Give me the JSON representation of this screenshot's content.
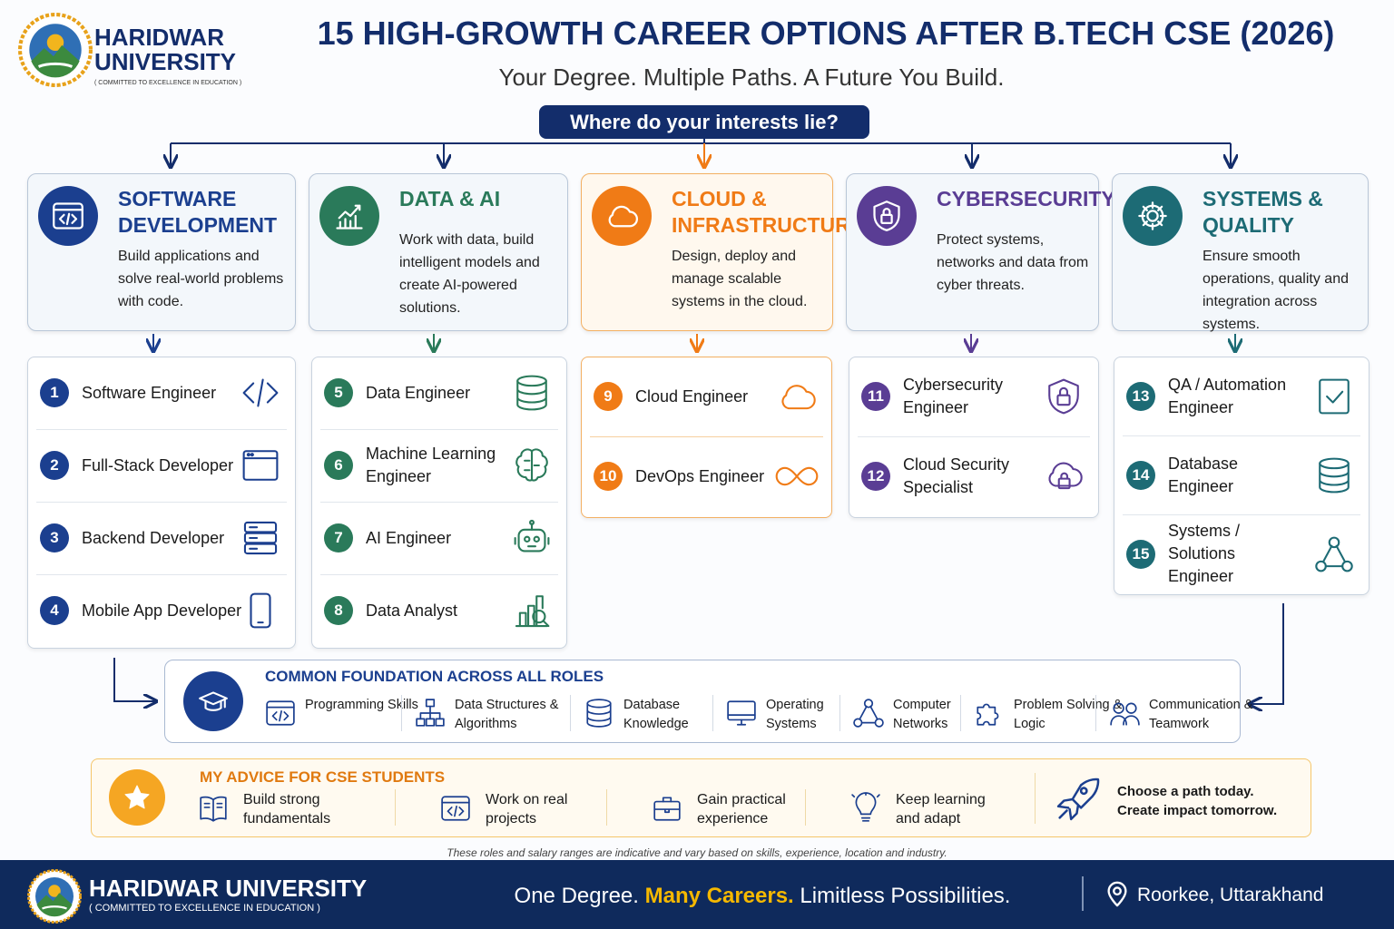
{
  "header": {
    "logo_name": "HARIDWAR UNIVERSITY",
    "logo_tagline": "( COMMITTED TO EXCELLENCE IN EDUCATION )",
    "title": "15 HIGH-GROWTH CAREER OPTIONS AFTER B.TECH CSE (2026)",
    "subtitle": "Your Degree. Multiple Paths. A Future You Build."
  },
  "question": "Where do your interests lie?",
  "categories": [
    {
      "title": "SOFTWARE DEVELOPMENT",
      "description": "Build applications and solve real-world problems with code.",
      "color": "#1b3f8f",
      "roles": [
        {
          "number": 1,
          "title": "Software Engineer"
        },
        {
          "number": 2,
          "title": "Full-Stack Developer"
        },
        {
          "number": 3,
          "title": "Backend Developer"
        },
        {
          "number": 4,
          "title": "Mobile App Developer"
        }
      ]
    },
    {
      "title": "DATA & AI",
      "description": "Work with data, build intelligent models and create AI-powered solutions.",
      "color": "#2a7a5a",
      "roles": [
        {
          "number": 5,
          "title": "Data Engineer"
        },
        {
          "number": 6,
          "title": "Machine Learning Engineer"
        },
        {
          "number": 7,
          "title": "AI Engineer"
        },
        {
          "number": 8,
          "title": "Data Analyst"
        }
      ]
    },
    {
      "title": "CLOUD & INFRASTRUCTURE",
      "description": "Design, deploy and manage scalable systems in the cloud.",
      "color": "#f07b16",
      "roles": [
        {
          "number": 9,
          "title": "Cloud Engineer"
        },
        {
          "number": 10,
          "title": "DevOps Engineer"
        }
      ]
    },
    {
      "title": "CYBERSECURITY",
      "description": "Protect systems, networks and data from cyber threats.",
      "color": "#5a3d94",
      "roles": [
        {
          "number": 11,
          "title": "Cybersecurity Engineer"
        },
        {
          "number": 12,
          "title": "Cloud Security Specialist"
        }
      ]
    },
    {
      "title": "SYSTEMS & QUALITY",
      "description": "Ensure smooth operations, quality and integration across systems.",
      "color": "#1d6b75",
      "roles": [
        {
          "number": 13,
          "title": "QA / Automation Engineer"
        },
        {
          "number": 14,
          "title": "Database Engineer"
        },
        {
          "number": 15,
          "title": "Systems / Solutions Engineer"
        }
      ]
    }
  ],
  "foundation": {
    "title": "COMMON FOUNDATION ACROSS ALL ROLES",
    "items": [
      "Programming Skills",
      "Data Structures & Algorithms",
      "Database Knowledge",
      "Operating Systems",
      "Computer Networks",
      "Problem Solving & Logic",
      "Communication & Teamwork"
    ]
  },
  "advice": {
    "title": "MY ADVICE FOR CSE STUDENTS",
    "items": [
      "Build strong fundamentals",
      "Work on real projects",
      "Gain practical experience",
      "Keep learning and adapt"
    ],
    "closing": "Choose a path today. Create impact tomorrow."
  },
  "disclaimer": "These roles and salary ranges are indicative and vary based on skills, experience, location and industry.",
  "footer": {
    "name": "HARIDWAR UNIVERSITY",
    "tagline": "( COMMITTED TO EXCELLENCE IN EDUCATION )",
    "slogan": [
      "One Degree.",
      "Many Careers.",
      "Limitless Possibilities."
    ],
    "location": "Roorkee, Uttarakhand"
  }
}
